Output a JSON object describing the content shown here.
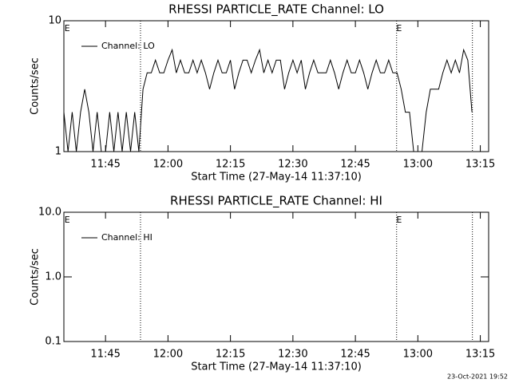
{
  "chart_data": [
    {
      "type": "line",
      "title": "RHESSI PARTICLE_RATE Channel: LO",
      "xlabel": "Start Time (27-May-14 11:37:10)",
      "ylabel": "Counts/sec",
      "x": [
        695,
        696,
        697,
        698,
        699,
        700,
        701,
        702,
        703,
        704,
        705,
        706,
        707,
        708,
        709,
        710,
        711,
        712,
        713,
        714,
        715,
        716,
        717,
        718,
        719,
        720,
        721,
        722,
        723,
        724,
        725,
        726,
        727,
        728,
        729,
        730,
        731,
        732,
        733,
        734,
        735,
        736,
        737,
        738,
        739,
        740,
        741,
        742,
        743,
        744,
        745,
        746,
        747,
        748,
        749,
        750,
        751,
        752,
        753,
        754,
        755,
        756,
        757,
        758,
        759,
        760,
        761,
        762,
        763,
        764,
        765,
        766,
        767,
        768,
        769,
        770,
        771,
        772,
        773,
        774,
        775,
        776,
        777,
        778,
        779,
        780,
        781,
        782,
        783,
        784,
        785,
        786,
        787,
        788,
        789,
        790,
        791,
        792,
        793
      ],
      "series": [
        {
          "name": "Channel: LO",
          "color": "#000000",
          "values": [
            2,
            1,
            2,
            1,
            2,
            3,
            2,
            1,
            2,
            1,
            1,
            2,
            1,
            2,
            1,
            2,
            1,
            2,
            1,
            3,
            4,
            4,
            5,
            4,
            4,
            5,
            6,
            4,
            5,
            4,
            4,
            5,
            4,
            5,
            4,
            3,
            4,
            5,
            4,
            4,
            5,
            3,
            4,
            5,
            5,
            4,
            5,
            6,
            4,
            5,
            4,
            5,
            5,
            3,
            4,
            5,
            4,
            5,
            3,
            4,
            5,
            4,
            4,
            4,
            5,
            4,
            3,
            4,
            5,
            4,
            4,
            5,
            4,
            3,
            4,
            5,
            4,
            4,
            5,
            4,
            4,
            3,
            2,
            2,
            1,
            1,
            1,
            2,
            3,
            3,
            3,
            4,
            5,
            4,
            5,
            4,
            6,
            5,
            2
          ]
        }
      ],
      "xlim": [
        695,
        797
      ],
      "ylim": [
        1,
        10
      ],
      "log_y": true,
      "legend": "upper left",
      "xticks": [
        {
          "value": 705,
          "label": "11:45"
        },
        {
          "value": 720,
          "label": "12:00"
        },
        {
          "value": 735,
          "label": "12:15"
        },
        {
          "value": 750,
          "label": "12:30"
        },
        {
          "value": 765,
          "label": "12:45"
        },
        {
          "value": 780,
          "label": "13:00"
        },
        {
          "value": 795,
          "label": "13:15"
        }
      ],
      "yticks": [
        1,
        10
      ],
      "markers": [
        713.4,
        774.9,
        793.1
      ],
      "annotations": [
        {
          "text": "E",
          "x": 695.8
        },
        {
          "text": "E",
          "x": 775.5
        }
      ]
    },
    {
      "type": "line",
      "title": "RHESSI PARTICLE_RATE Channel: HI",
      "xlabel": "Start Time (27-May-14 11:37:10)",
      "ylabel": "Counts/sec",
      "x": [],
      "series": [
        {
          "name": "Channel: HI",
          "color": "#000000",
          "values": []
        }
      ],
      "xlim": [
        695,
        797
      ],
      "ylim": [
        0.1,
        10
      ],
      "log_y": true,
      "legend": "upper left",
      "xticks": [
        {
          "value": 705,
          "label": "11:45"
        },
        {
          "value": 720,
          "label": "12:00"
        },
        {
          "value": 735,
          "label": "12:15"
        },
        {
          "value": 750,
          "label": "12:30"
        },
        {
          "value": 765,
          "label": "12:45"
        },
        {
          "value": 780,
          "label": "13:00"
        },
        {
          "value": 795,
          "label": "13:15"
        }
      ],
      "yticks": [
        {
          "value": 0.1,
          "label": "0.1"
        },
        {
          "value": 1,
          "label": "1.0"
        },
        {
          "value": 10,
          "label": "10.0"
        }
      ],
      "markers": [
        713.4,
        774.9,
        793.1
      ],
      "annotations": [
        {
          "text": "E",
          "x": 695.8
        },
        {
          "text": "E",
          "x": 775.5
        }
      ]
    }
  ],
  "footer": "23-Oct-2021 19:52"
}
